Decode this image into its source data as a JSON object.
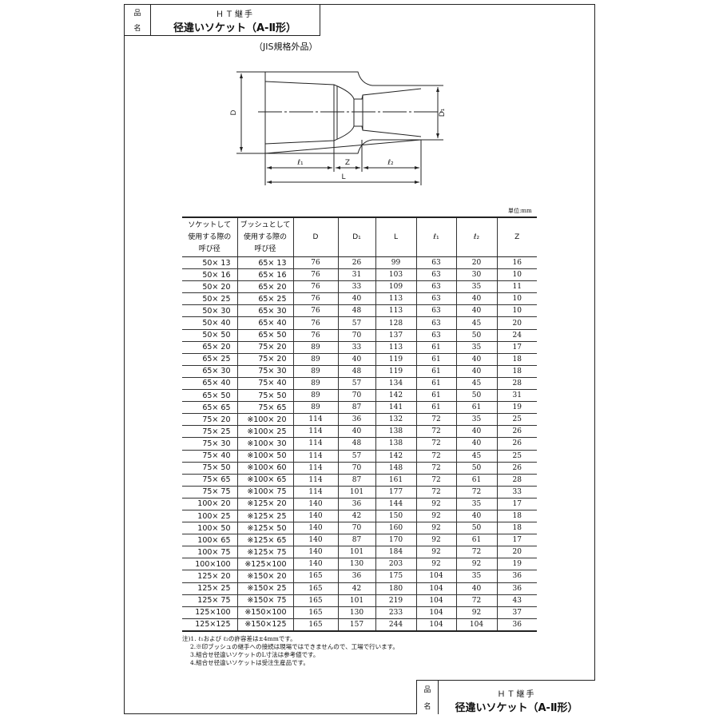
{
  "title_block": {
    "label_top": "品",
    "label_bottom": "名",
    "subtitle": "ＨＴ継手",
    "title": "径違いソケット（A-Ⅱ形）"
  },
  "note_jis": "（JIS規格外品）",
  "drawing": {
    "labels": {
      "D": "D",
      "D1": "D₁",
      "l1": "ℓ₁",
      "Z": "Z",
      "l2": "ℓ₂",
      "L": "L"
    }
  },
  "unit": "単位:mm",
  "table": {
    "headers": [
      "ソケットして使用する際の呼び径",
      "ブッシュとして使用する際の呼び径",
      "D",
      "D₁",
      "L",
      "ℓ₁",
      "ℓ₂",
      "Z"
    ],
    "rows": [
      [
        "50× 13",
        "65× 13",
        "76",
        "26",
        "99",
        "63",
        "20",
        "16"
      ],
      [
        "50× 16",
        "65× 16",
        "76",
        "31",
        "103",
        "63",
        "30",
        "10"
      ],
      [
        "50× 20",
        "65× 20",
        "76",
        "33",
        "109",
        "63",
        "35",
        "11"
      ],
      [
        "50× 25",
        "65× 25",
        "76",
        "40",
        "113",
        "63",
        "40",
        "10"
      ],
      [
        "50× 30",
        "65× 30",
        "76",
        "48",
        "113",
        "63",
        "40",
        "10"
      ],
      [
        "50× 40",
        "65× 40",
        "76",
        "57",
        "128",
        "63",
        "45",
        "20"
      ],
      [
        "50× 50",
        "65× 50",
        "76",
        "70",
        "137",
        "63",
        "50",
        "24"
      ],
      [
        "65× 20",
        "75× 20",
        "89",
        "33",
        "113",
        "61",
        "35",
        "17"
      ],
      [
        "65× 25",
        "75× 20",
        "89",
        "40",
        "119",
        "61",
        "40",
        "18"
      ],
      [
        "65× 30",
        "75× 30",
        "89",
        "48",
        "119",
        "61",
        "40",
        "18"
      ],
      [
        "65× 40",
        "75× 40",
        "89",
        "57",
        "134",
        "61",
        "45",
        "28"
      ],
      [
        "65× 50",
        "75× 50",
        "89",
        "70",
        "142",
        "61",
        "50",
        "31"
      ],
      [
        "65× 65",
        "75× 65",
        "89",
        "87",
        "141",
        "61",
        "61",
        "19"
      ],
      [
        "75× 20",
        "※100× 20",
        "114",
        "36",
        "132",
        "72",
        "35",
        "25"
      ],
      [
        "75× 25",
        "※100× 25",
        "114",
        "40",
        "138",
        "72",
        "40",
        "26"
      ],
      [
        "75× 30",
        "※100× 30",
        "114",
        "48",
        "138",
        "72",
        "40",
        "26"
      ],
      [
        "75× 40",
        "※100× 50",
        "114",
        "57",
        "142",
        "72",
        "45",
        "25"
      ],
      [
        "75× 50",
        "※100× 60",
        "114",
        "70",
        "148",
        "72",
        "50",
        "26"
      ],
      [
        "75× 65",
        "※100× 65",
        "114",
        "87",
        "161",
        "72",
        "61",
        "28"
      ],
      [
        "75× 75",
        "※100× 75",
        "114",
        "101",
        "177",
        "72",
        "72",
        "33"
      ],
      [
        "100× 20",
        "※125× 20",
        "140",
        "36",
        "144",
        "92",
        "35",
        "17"
      ],
      [
        "100× 25",
        "※125× 25",
        "140",
        "42",
        "150",
        "92",
        "40",
        "18"
      ],
      [
        "100× 50",
        "※125× 50",
        "140",
        "70",
        "160",
        "92",
        "50",
        "18"
      ],
      [
        "100× 65",
        "※125× 65",
        "140",
        "87",
        "170",
        "92",
        "61",
        "17"
      ],
      [
        "100× 75",
        "※125× 75",
        "140",
        "101",
        "184",
        "92",
        "72",
        "20"
      ],
      [
        "100×100",
        "※125×100",
        "140",
        "130",
        "203",
        "92",
        "92",
        "19"
      ],
      [
        "125× 20",
        "※150× 20",
        "165",
        "36",
        "175",
        "104",
        "35",
        "36"
      ],
      [
        "125× 25",
        "※150× 25",
        "165",
        "42",
        "180",
        "104",
        "40",
        "36"
      ],
      [
        "125× 75",
        "※150× 75",
        "165",
        "101",
        "219",
        "104",
        "72",
        "43"
      ],
      [
        "125×100",
        "※150×100",
        "165",
        "130",
        "233",
        "104",
        "92",
        "37"
      ],
      [
        "125×125",
        "※150×125",
        "165",
        "157",
        "244",
        "104",
        "104",
        "36"
      ]
    ]
  },
  "notes": [
    "注)1. ℓ₁および ℓ₂の許容差は±4mmです。",
    "2.※印ブッシュの継手への接続は現場ではできませんので、工場で行います。",
    "3.組合せ径違いソケットのL寸法は参考値です。",
    "4.組合せ径違いソケットは受注生産品です。"
  ]
}
